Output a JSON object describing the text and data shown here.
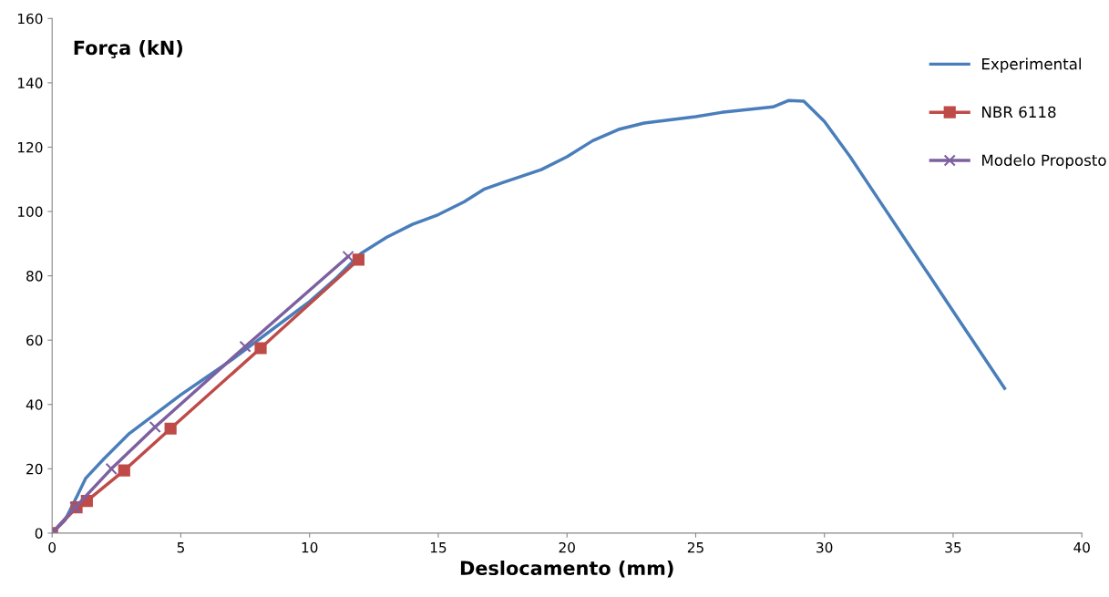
{
  "chart_data": {
    "type": "line",
    "xlabel": "Deslocamento (mm)",
    "ylabel": "Força (kN)",
    "xlim": [
      0,
      40
    ],
    "xticks": [
      0,
      5,
      10,
      15,
      20,
      25,
      30,
      35,
      40
    ],
    "ylim": [
      0,
      160
    ],
    "yticks": [
      0,
      20,
      40,
      60,
      80,
      100,
      120,
      140,
      160
    ],
    "legend": "right",
    "line_style": "solid",
    "series": [
      {
        "name": "Experimental",
        "color": "#4a7ebb",
        "marker": "none",
        "x": [
          0,
          0.5,
          1,
          1.3,
          2,
          3,
          4,
          5,
          6,
          7,
          8,
          9,
          10,
          11,
          12,
          13,
          14,
          15,
          16,
          16.8,
          17.5,
          19,
          20,
          21,
          22,
          23,
          25,
          26,
          28,
          28.6,
          29.2,
          30,
          31,
          32,
          33,
          34,
          35,
          36,
          37
        ],
        "values": [
          0,
          4,
          12,
          17,
          23,
          31,
          37,
          43,
          48.5,
          54,
          60,
          66,
          72,
          79,
          87,
          92,
          96,
          99,
          103,
          107,
          109,
          113,
          117,
          122,
          125.5,
          127.5,
          129.5,
          130.8,
          132.5,
          134.5,
          134.3,
          128,
          117,
          105,
          93,
          81,
          69,
          57,
          45
        ]
      },
      {
        "name": "NBR 6118",
        "color": "#be4b48",
        "marker": "square",
        "x": [
          0,
          0.95,
          1.35,
          2.8,
          4.6,
          8.1,
          11.9
        ],
        "values": [
          0,
          8,
          10,
          19.5,
          32.5,
          57.5,
          85
        ]
      },
      {
        "name": "Modelo Proposto",
        "color": "#7d60a0",
        "marker": "cross",
        "x": [
          0,
          0.9,
          2.3,
          4,
          7.5,
          11.5
        ],
        "values": [
          0,
          8,
          20,
          33,
          58,
          86
        ]
      }
    ]
  }
}
